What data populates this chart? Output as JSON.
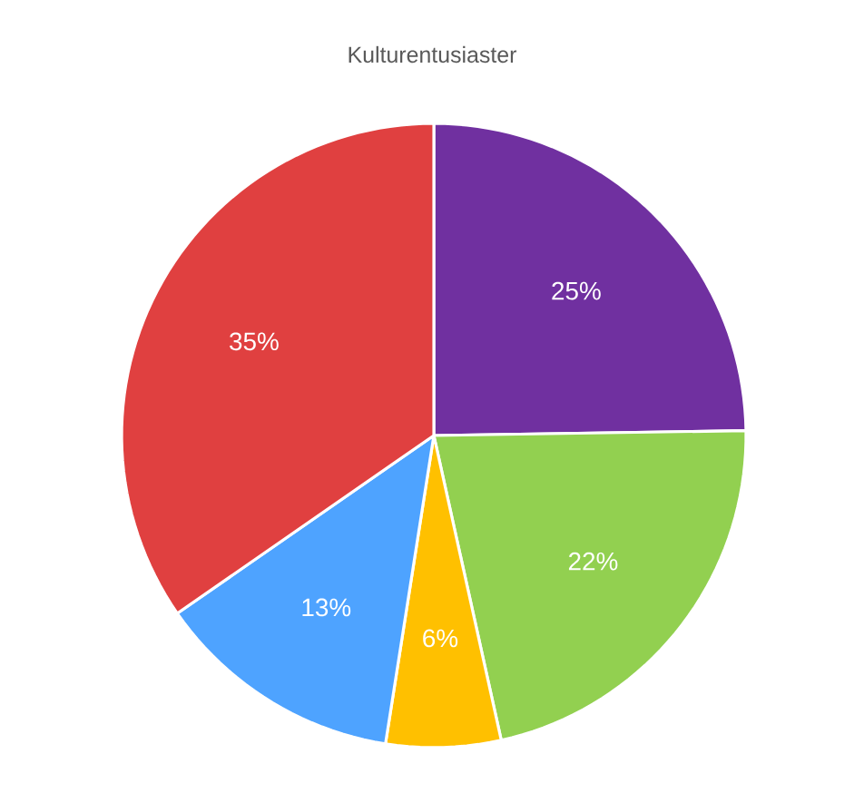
{
  "chart_data": {
    "type": "pie",
    "title": "Kulturentusiaster",
    "categories": [
      null,
      null,
      null,
      null,
      null
    ],
    "values": [
      25,
      22,
      6,
      13,
      35
    ],
    "value_labels": [
      "25%",
      "22%",
      "6%",
      "13%",
      "35%"
    ],
    "colors": [
      "#7030a0",
      "#92d050",
      "#ffc000",
      "#4ea3ff",
      "#e04040"
    ]
  }
}
